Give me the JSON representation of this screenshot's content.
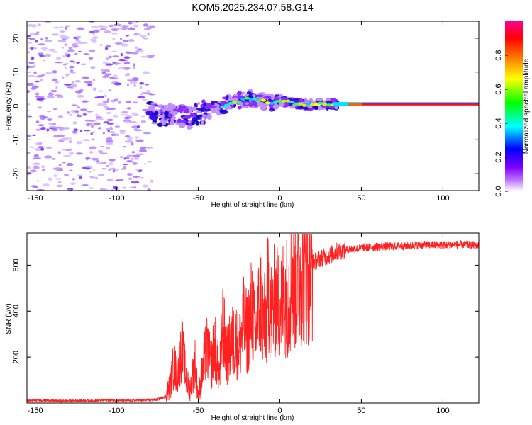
{
  "title": "KOM5.2025.234.07.58.G14",
  "chart_data": [
    {
      "type": "heatmap",
      "xlabel": "Height of straight line (km)",
      "ylabel": "Frequency (Hz)",
      "xlim": [
        -155,
        122
      ],
      "ylim": [
        -25,
        25
      ],
      "xticks": [
        -150,
        -100,
        -50,
        0,
        50,
        100
      ],
      "yticks": [
        -20,
        -10,
        0,
        10,
        20
      ],
      "colorbar": {
        "label": "Normalized spectral amplitude",
        "range": [
          0.0,
          1.0
        ],
        "ticks": [
          0.0,
          0.2,
          0.4,
          0.6,
          0.8
        ],
        "tick_labels": [
          "0.0",
          "0.2",
          "0.4",
          "0.6",
          "0.8"
        ],
        "colormap": [
          "#ffffff",
          "#8000ff",
          "#0000ff",
          "#00ffff",
          "#00ff00",
          "#ffff00",
          "#ff8000",
          "#ff0000",
          "#ff0090"
        ]
      },
      "ridge": {
        "description_points_x": [
          -82,
          -75,
          -70,
          -62,
          -55,
          -50,
          -45,
          -40,
          -35,
          -30,
          -25,
          -20,
          -17,
          -13,
          -8,
          -4,
          0,
          5,
          10,
          15,
          20,
          25,
          30,
          35,
          122
        ],
        "description_points_freq": [
          -2.0,
          -2.5,
          -2.8,
          -3.0,
          -3.5,
          -2.5,
          -1.5,
          -0.8,
          0.0,
          0.8,
          1.5,
          2.0,
          2.2,
          1.8,
          1.2,
          1.0,
          1.4,
          1.2,
          0.6,
          0.4,
          0.5,
          0.6,
          0.5,
          0.5,
          0.5
        ]
      }
    },
    {
      "type": "line",
      "xlabel": "Height of straight line (km)",
      "ylabel": "SNR (v/v)",
      "xlim": [
        -155,
        122
      ],
      "ylim": [
        0,
        740
      ],
      "xticks": [
        -150,
        -100,
        -50,
        0,
        50,
        100
      ],
      "yticks": [
        200,
        400,
        600
      ],
      "series_color": "#ff2020",
      "series": [
        {
          "name": "SNR",
          "x": [
            -155,
            -145,
            -135,
            -125,
            -115,
            -105,
            -95,
            -85,
            -75,
            -70,
            -67,
            -65,
            -63,
            -60,
            -57,
            -55,
            -52,
            -50,
            -47,
            -45,
            -42,
            -40,
            -37,
            -35,
            -32,
            -30,
            -27,
            -25,
            -22,
            -20,
            -17,
            -15,
            -12,
            -10,
            -8,
            -7,
            -5,
            -3,
            0,
            3,
            5,
            8,
            10,
            13,
            15,
            18,
            20,
            25,
            30,
            35,
            40,
            45,
            50,
            60,
            70,
            80,
            90,
            100,
            110,
            122
          ],
          "y": [
            10,
            12,
            9,
            11,
            10,
            13,
            10,
            12,
            15,
            30,
            80,
            170,
            120,
            240,
            90,
            60,
            180,
            30,
            150,
            240,
            160,
            260,
            120,
            330,
            200,
            260,
            280,
            240,
            350,
            300,
            420,
            280,
            460,
            350,
            370,
            520,
            380,
            450,
            420,
            480,
            460,
            560,
            500,
            580,
            560,
            600,
            610,
            630,
            640,
            660,
            665,
            670,
            675,
            680,
            682,
            685,
            688,
            688,
            690,
            686
          ]
        }
      ]
    }
  ]
}
